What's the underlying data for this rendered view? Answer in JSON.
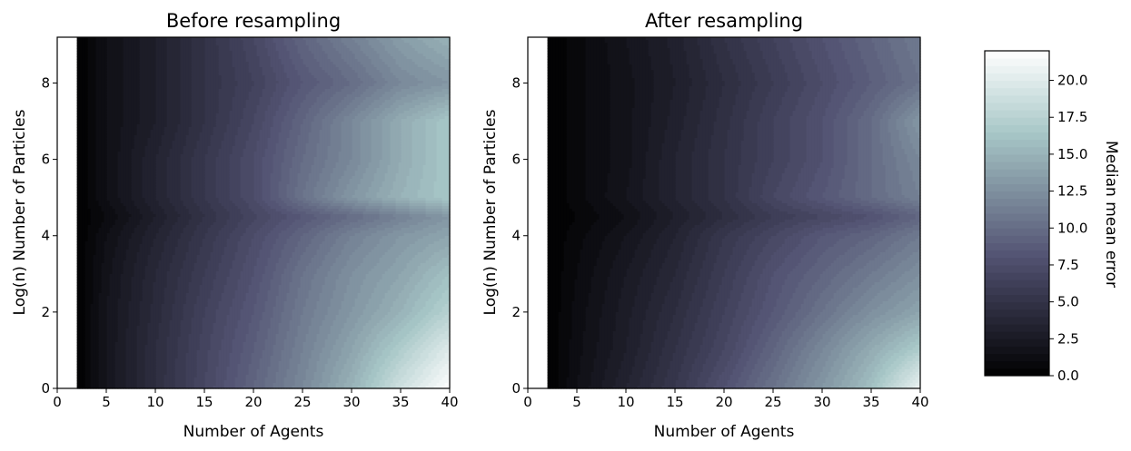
{
  "chart_data": [
    {
      "type": "heatmap",
      "subtype": "filled-contour",
      "title": "Before resampling",
      "xlabel": "Number of Agents",
      "ylabel": "Log(n) Number of Particles",
      "xlim": [
        0,
        40
      ],
      "ylim": [
        0,
        9.2
      ],
      "data_x_range": [
        2,
        40
      ],
      "xticks": [
        "0",
        "5",
        "10",
        "15",
        "20",
        "25",
        "30",
        "35",
        "40"
      ],
      "yticks": [
        "0",
        "2",
        "4",
        "6",
        "8"
      ],
      "x": [
        2,
        5,
        10,
        15,
        20,
        25,
        30,
        35,
        40
      ],
      "y": [
        0,
        1,
        2,
        3,
        4,
        4.5,
        5,
        6,
        7,
        8,
        9.2
      ],
      "z": [
        [
          0,
          2,
          4.5,
          7,
          9.5,
          12,
          15,
          19,
          22
        ],
        [
          0,
          2,
          4.5,
          6.8,
          9,
          11.5,
          14,
          17,
          20
        ],
        [
          0,
          2,
          4.2,
          6.5,
          8.5,
          11,
          13,
          15,
          17.5
        ],
        [
          0,
          1.8,
          4,
          6,
          8,
          10.5,
          12.5,
          14,
          16
        ],
        [
          0,
          1.5,
          3.5,
          5.5,
          7.5,
          9.5,
          11.5,
          13,
          14
        ],
        [
          0,
          1,
          3,
          5,
          6.8,
          8.5,
          10,
          11.5,
          13
        ],
        [
          0,
          1.5,
          3.5,
          5.5,
          7.5,
          10.5,
          13,
          15,
          16.5
        ],
        [
          0,
          1.5,
          3.5,
          5.5,
          7.5,
          10,
          12,
          14.5,
          16.5
        ],
        [
          0,
          1.5,
          3,
          5,
          7,
          9.5,
          12,
          14.5,
          16.5
        ],
        [
          0,
          1.5,
          3,
          5,
          6.5,
          8.5,
          10,
          12,
          13
        ],
        [
          0,
          1.5,
          3,
          5,
          7,
          9.5,
          11.5,
          13.5,
          15
        ]
      ]
    },
    {
      "type": "heatmap",
      "subtype": "filled-contour",
      "title": "After resampling",
      "xlabel": "Number of Agents",
      "ylabel": "Log(n) Number of Particles",
      "xlim": [
        0,
        40
      ],
      "ylim": [
        0,
        9.2
      ],
      "data_x_range": [
        2,
        40
      ],
      "xticks": [
        "0",
        "5",
        "10",
        "15",
        "20",
        "25",
        "30",
        "35",
        "40"
      ],
      "yticks": [
        "0",
        "2",
        "4",
        "6",
        "8"
      ],
      "x": [
        2,
        5,
        10,
        15,
        20,
        25,
        30,
        35,
        40
      ],
      "y": [
        0,
        1,
        2,
        3,
        4,
        4.5,
        5,
        6,
        7,
        8,
        9.2
      ],
      "z": [
        [
          0,
          1.5,
          3.5,
          5.5,
          8,
          10.5,
          13,
          16,
          21
        ],
        [
          0,
          1.3,
          3,
          5,
          7,
          9.5,
          12,
          14.5,
          17
        ],
        [
          0,
          1.2,
          2.8,
          4.5,
          6.5,
          8.5,
          10.5,
          12.5,
          14
        ],
        [
          0,
          1,
          2.5,
          4,
          6,
          8,
          9.5,
          11,
          12.5
        ],
        [
          0,
          0.8,
          2,
          3.5,
          5.5,
          7,
          8.5,
          9.5,
          11
        ],
        [
          0,
          0.5,
          1.5,
          3,
          4.5,
          6,
          7,
          8,
          9.5
        ],
        [
          0,
          0.8,
          2,
          3.5,
          5,
          7,
          8.5,
          10,
          11.5
        ],
        [
          0,
          0.8,
          1.8,
          3.5,
          5,
          6.5,
          8,
          10,
          12
        ],
        [
          0,
          0.8,
          1.8,
          3.2,
          4.8,
          6.5,
          8,
          10,
          13
        ],
        [
          0,
          0.8,
          1.8,
          3,
          4.5,
          6,
          7.5,
          9,
          10.5
        ],
        [
          0,
          0.8,
          2,
          3.2,
          5,
          6.5,
          8,
          9.5,
          11
        ]
      ]
    }
  ],
  "colorbar": {
    "label": "Median mean error",
    "vmin": 0,
    "vmax": 22,
    "levels": 44,
    "colormap": "bone",
    "ticks": [
      "0.0",
      "2.5",
      "5.0",
      "7.5",
      "10.0",
      "12.5",
      "15.0",
      "17.5",
      "20.0"
    ]
  }
}
